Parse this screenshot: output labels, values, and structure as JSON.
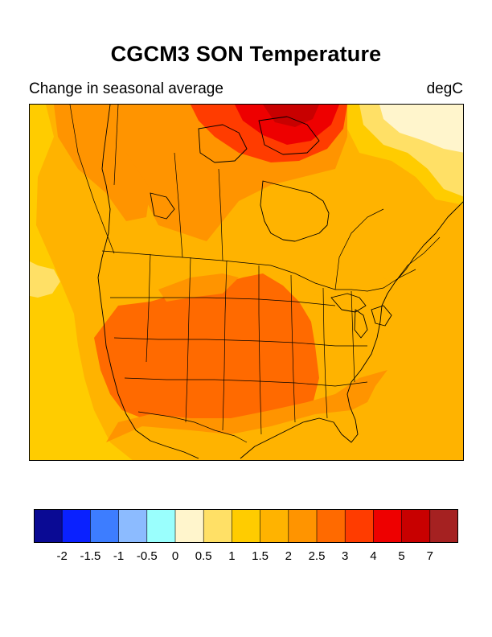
{
  "title": "CGCM3 SON Temperature",
  "subtitle_left": "Change in seasonal average",
  "subtitle_right": "degC",
  "colorbar": {
    "colors": [
      "#0a0a94",
      "#0a21ff",
      "#3d7dff",
      "#8cbbff",
      "#9afffd",
      "#fff5cc",
      "#ffe066",
      "#ffcc00",
      "#ffb300",
      "#ff9400",
      "#ff6a00",
      "#ff3c00",
      "#ee0000",
      "#c80000",
      "#a52121"
    ],
    "labels": [
      "-2",
      "-1.5",
      "-1",
      "-0.5",
      "0",
      "0.5",
      "1",
      "1.5",
      "2",
      "2.5",
      "3",
      "4",
      "5",
      "7"
    ]
  }
}
